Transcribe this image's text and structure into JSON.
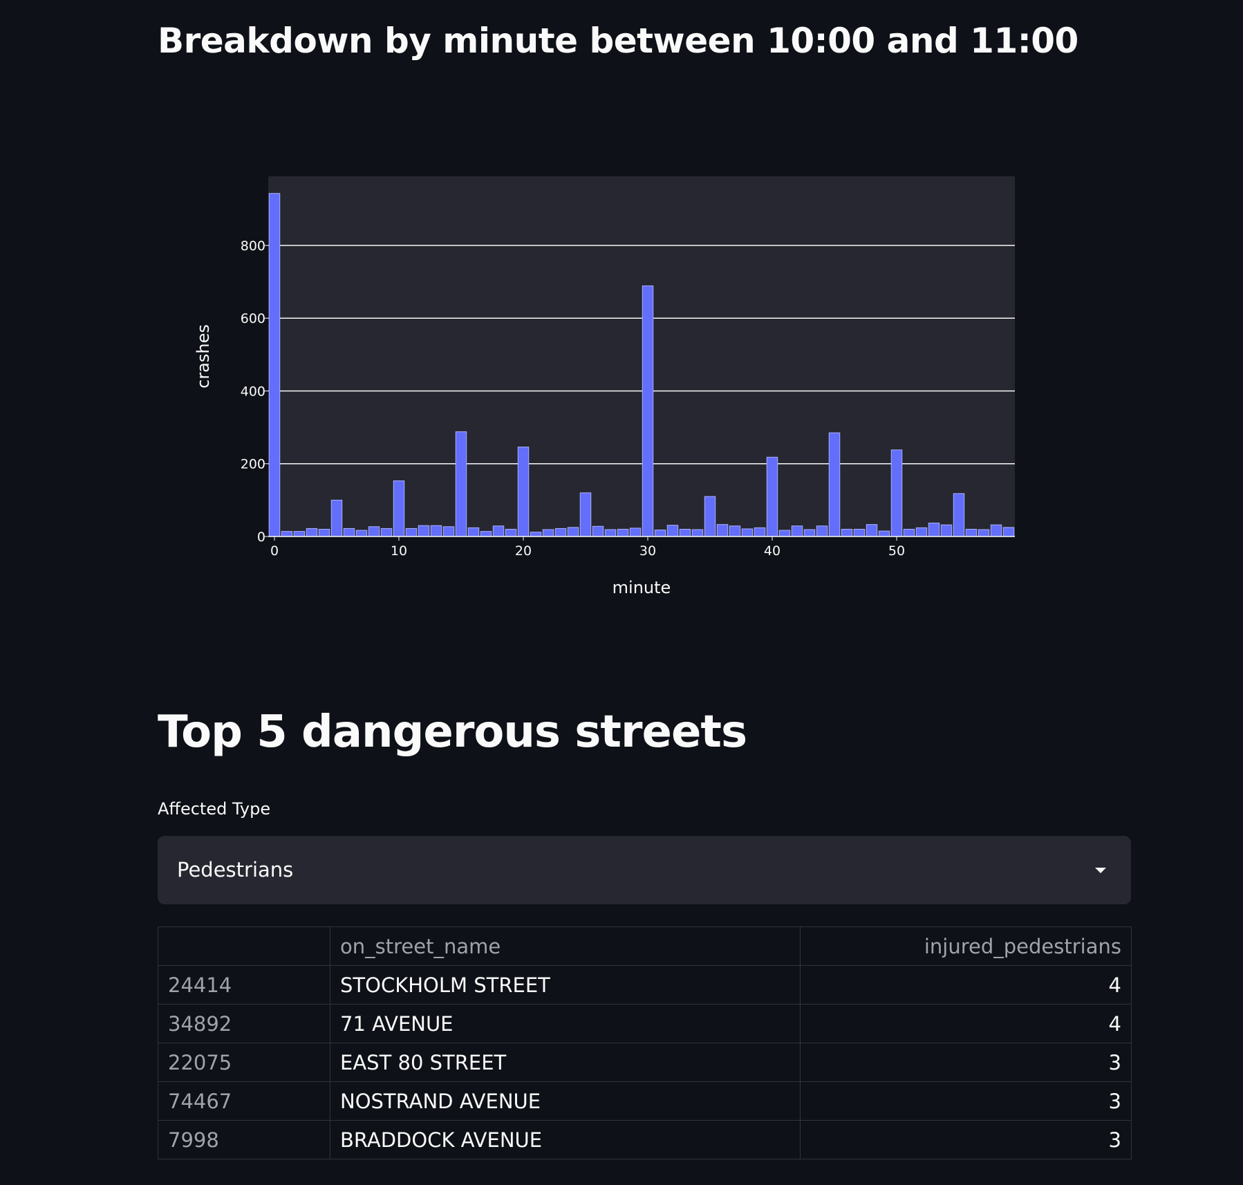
{
  "breakdown_heading": "Breakdown by minute between 10:00 and 11:00",
  "chart_data": {
    "type": "bar",
    "xlabel": "minute",
    "ylabel": "crashes",
    "x": [
      0,
      1,
      2,
      3,
      4,
      5,
      6,
      7,
      8,
      9,
      10,
      11,
      12,
      13,
      14,
      15,
      16,
      17,
      18,
      19,
      20,
      21,
      22,
      23,
      24,
      25,
      26,
      27,
      28,
      29,
      30,
      31,
      32,
      33,
      34,
      35,
      36,
      37,
      38,
      39,
      40,
      41,
      42,
      43,
      44,
      45,
      46,
      47,
      48,
      49,
      50,
      51,
      52,
      53,
      54,
      55,
      56,
      57,
      58,
      59
    ],
    "values": [
      943,
      14,
      14,
      22,
      20,
      100,
      22,
      17,
      27,
      22,
      153,
      22,
      30,
      30,
      27,
      288,
      24,
      14,
      29,
      20,
      246,
      12,
      19,
      22,
      25,
      120,
      28,
      19,
      20,
      23,
      689,
      18,
      31,
      20,
      19,
      110,
      33,
      29,
      21,
      24,
      218,
      17,
      29,
      19,
      29,
      285,
      20,
      20,
      33,
      15,
      238,
      20,
      24,
      37,
      32,
      118,
      20,
      19,
      32,
      25
    ],
    "xlim": [
      -0.5,
      59.5
    ],
    "ylim": [
      0,
      990
    ],
    "xticks": [
      0,
      10,
      20,
      30,
      40,
      50
    ],
    "yticks": [
      0,
      200,
      400,
      600,
      800
    ],
    "grid": true,
    "colors": {
      "bar": "#636efa",
      "bar_stroke": "#a9b0ff",
      "plot_bg": "#262730",
      "grid": "#fafafa",
      "text": "#fafafa"
    }
  },
  "top_heading": "Top 5 dangerous streets",
  "select": {
    "label": "Affected Type",
    "value": "Pedestrians",
    "icon": "chevron-down-icon"
  },
  "table": {
    "columns": [
      "",
      "on_street_name",
      "injured_pedestrians"
    ],
    "rows": [
      {
        "index": "24414",
        "street": "STOCKHOLM STREET",
        "injured": "4"
      },
      {
        "index": "34892",
        "street": "71 AVENUE",
        "injured": "4"
      },
      {
        "index": "22075",
        "street": "EAST 80 STREET",
        "injured": "3"
      },
      {
        "index": "74467",
        "street": "NOSTRAND AVENUE",
        "injured": "3"
      },
      {
        "index": "7998",
        "street": "BRADDOCK AVENUE",
        "injured": "3"
      }
    ]
  }
}
